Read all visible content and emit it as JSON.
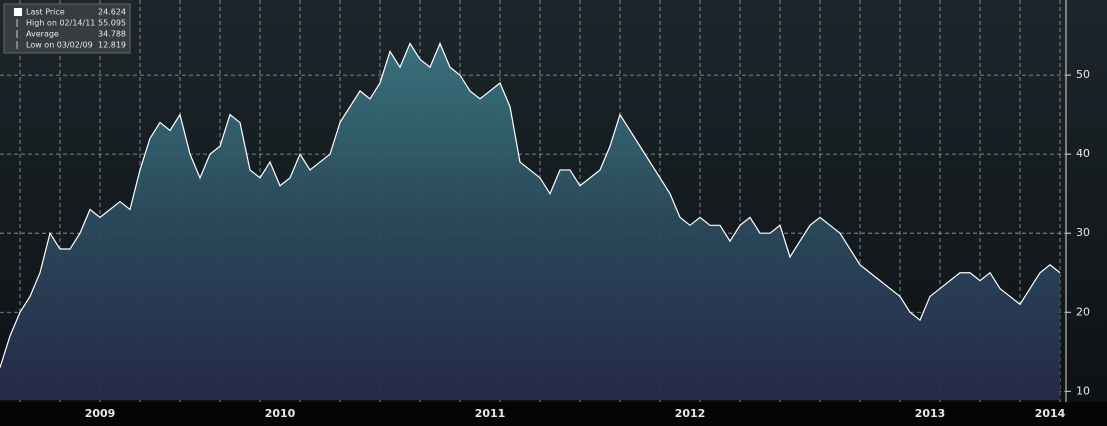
{
  "chart_data": {
    "type": "line",
    "categories": [
      null,
      null,
      null,
      null,
      null,
      null,
      null,
      null,
      null,
      null,
      "2009",
      null,
      null,
      null,
      null,
      null,
      null,
      null,
      null,
      null,
      null,
      null,
      null,
      null,
      null,
      null,
      null,
      null,
      "2010",
      null,
      null,
      null,
      null,
      null,
      null,
      null,
      null,
      null,
      null,
      null,
      null,
      null,
      null,
      null,
      null,
      null,
      null,
      null,
      null,
      "2011",
      null,
      null,
      null,
      null,
      null,
      null,
      null,
      null,
      null,
      null,
      null,
      null,
      null,
      null,
      null,
      null,
      null,
      null,
      null,
      "2012",
      null,
      null,
      null,
      null,
      null,
      null,
      null,
      null,
      null,
      null,
      null,
      null,
      null,
      null,
      null,
      null,
      null,
      null,
      null,
      null,
      null,
      null,
      null,
      "2013",
      null,
      null,
      null,
      null,
      null,
      null,
      null,
      null,
      null,
      null,
      null,
      "2014",
      null
    ],
    "series": [
      {
        "name": "Last Price",
        "color": "#ffffff",
        "values": [
          13,
          17,
          20,
          22,
          25,
          30,
          28,
          28,
          30,
          33,
          32,
          33,
          34,
          33,
          38,
          42,
          44,
          43,
          45,
          40,
          37,
          40,
          41,
          45,
          44,
          38,
          37,
          39,
          36,
          37,
          40,
          38,
          39,
          40,
          44,
          46,
          48,
          47,
          49,
          53,
          51,
          54,
          52,
          51,
          54,
          51,
          50,
          48,
          47,
          48,
          49,
          46,
          39,
          38,
          37,
          35,
          38,
          38,
          36,
          37,
          38,
          41,
          45,
          43,
          41,
          39,
          37,
          35,
          32,
          31,
          32,
          31,
          31,
          29,
          31,
          32,
          30,
          30,
          31,
          27,
          29,
          31,
          32,
          31,
          30,
          28,
          26,
          25,
          24,
          23,
          22,
          20,
          19,
          22,
          23,
          24,
          25,
          25,
          24,
          25,
          23,
          22,
          21,
          23,
          25,
          26,
          25
        ]
      }
    ],
    "legend": [
      {
        "label": "Last Price",
        "value": 24.624
      },
      {
        "label": "High on 02/14/11",
        "value": 55.095
      },
      {
        "label": "Average",
        "value": 34.788
      },
      {
        "label": "Low on 03/02/09",
        "value": 12.819
      }
    ],
    "ylim": [
      8.9,
      59.5
    ],
    "yticks": [
      10,
      20,
      30,
      40,
      50
    ],
    "grid": true
  }
}
